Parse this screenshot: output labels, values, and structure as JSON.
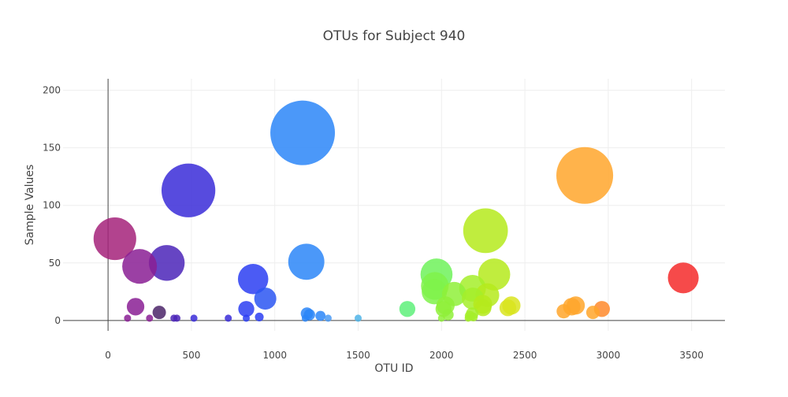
{
  "chart_data": {
    "type": "scatter",
    "subtype": "bubble",
    "title": "OTUs for Subject 940",
    "xlabel": "OTU ID",
    "ylabel": "Sample Values",
    "xlim": [
      -270,
      3700
    ],
    "ylim": [
      -9,
      210
    ],
    "xticks": [
      0,
      500,
      1000,
      1500,
      2000,
      2500,
      3000,
      3500
    ],
    "yticks": [
      0,
      50,
      100,
      150,
      200
    ],
    "grid": true,
    "legend": "none",
    "colorscale": "Earth",
    "points": [
      {
        "x": 1167,
        "y": 163,
        "color": "#2b86f8"
      },
      {
        "x": 2859,
        "y": 126,
        "color": "#ffa62b"
      },
      {
        "x": 482,
        "y": 113,
        "color": "#3a2bd8"
      },
      {
        "x": 2264,
        "y": 78,
        "color": "#b5ea1c"
      },
      {
        "x": 41,
        "y": 71,
        "color": "#a5227a"
      },
      {
        "x": 1189,
        "y": 51,
        "color": "#2b86f8"
      },
      {
        "x": 352,
        "y": 50,
        "color": "#4b24b8"
      },
      {
        "x": 189,
        "y": 47,
        "color": "#8a1f94"
      },
      {
        "x": 1970,
        "y": 40,
        "color": "#6ff25a"
      },
      {
        "x": 2316,
        "y": 40,
        "color": "#b5ea1c"
      },
      {
        "x": 3450,
        "y": 37,
        "color": "#f52a2a"
      },
      {
        "x": 870,
        "y": 36,
        "color": "#2b3ef2"
      },
      {
        "x": 1960,
        "y": 30,
        "color": "#7ff24a"
      },
      {
        "x": 2186,
        "y": 28,
        "color": "#a5ee2a"
      },
      {
        "x": 1957,
        "y": 25,
        "color": "#7ff24a"
      },
      {
        "x": 2076,
        "y": 23,
        "color": "#8ff03a"
      },
      {
        "x": 2275,
        "y": 22,
        "color": "#b5ea1c"
      },
      {
        "x": 2188,
        "y": 19,
        "color": "#a5ee2a"
      },
      {
        "x": 943,
        "y": 19,
        "color": "#2b56f2"
      },
      {
        "x": 2247,
        "y": 14,
        "color": "#b5ea1c"
      },
      {
        "x": 2024,
        "y": 13,
        "color": "#8ff03a"
      },
      {
        "x": 2805,
        "y": 13,
        "color": "#ffa62b"
      },
      {
        "x": 2419,
        "y": 13,
        "color": "#d9e41e"
      },
      {
        "x": 165,
        "y": 12,
        "color": "#8a1f94"
      },
      {
        "x": 2781,
        "y": 12,
        "color": "#ffa62b"
      },
      {
        "x": 2249,
        "y": 11,
        "color": "#b5ea1c"
      },
      {
        "x": 2398,
        "y": 11,
        "color": "#d9e41e"
      },
      {
        "x": 2012,
        "y": 10,
        "color": "#8ff03a"
      },
      {
        "x": 1795,
        "y": 10,
        "color": "#5ef07a"
      },
      {
        "x": 829,
        "y": 10,
        "color": "#2b3ef2"
      },
      {
        "x": 2962,
        "y": 10,
        "color": "#ff8a2b"
      },
      {
        "x": 2733,
        "y": 8,
        "color": "#ffa62b"
      },
      {
        "x": 307,
        "y": 7,
        "color": "#4b2468"
      },
      {
        "x": 2908,
        "y": 7,
        "color": "#ffa62b"
      },
      {
        "x": 2184,
        "y": 6,
        "color": "#a5ee2a"
      },
      {
        "x": 1193,
        "y": 6,
        "color": "#2b86f8"
      },
      {
        "x": 1208,
        "y": 5,
        "color": "#2b86f8"
      },
      {
        "x": 2039,
        "y": 5,
        "color": "#8ff03a"
      },
      {
        "x": 2170,
        "y": 4,
        "color": "#a5ee2a"
      },
      {
        "x": 1274,
        "y": 4,
        "color": "#2b86f8"
      },
      {
        "x": 2191,
        "y": 3,
        "color": "#a5ee2a"
      },
      {
        "x": 907,
        "y": 3,
        "color": "#2b3ef2"
      },
      {
        "x": 2000,
        "y": 2,
        "color": "#8ff03a"
      },
      {
        "x": 1320,
        "y": 2,
        "color": "#4a9af5"
      },
      {
        "x": 117,
        "y": 2,
        "color": "#8a1f94"
      },
      {
        "x": 1500,
        "y": 2,
        "color": "#4fb4e8"
      },
      {
        "x": 829,
        "y": 2,
        "color": "#2b3ef2"
      },
      {
        "x": 249,
        "y": 2,
        "color": "#8a1f94"
      },
      {
        "x": 395,
        "y": 2,
        "color": "#4b24b8"
      },
      {
        "x": 721,
        "y": 2,
        "color": "#3a2bd8"
      },
      {
        "x": 515,
        "y": 2,
        "color": "#3a2bd8"
      },
      {
        "x": 413,
        "y": 2,
        "color": "#4b24b8"
      },
      {
        "x": 1183,
        "y": 2,
        "color": "#2b86f8"
      },
      {
        "x": 2160,
        "y": 2,
        "color": "#a5ee2a"
      }
    ]
  }
}
